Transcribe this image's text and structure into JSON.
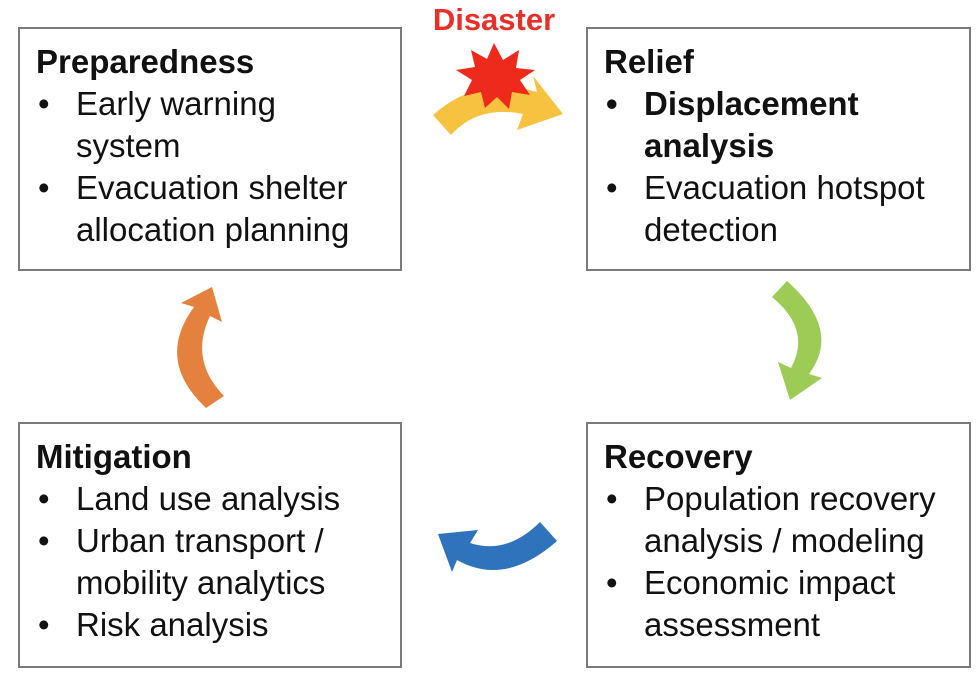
{
  "disaster_label": "Disaster",
  "phases": {
    "preparedness": {
      "title": "Preparedness",
      "items": [
        {
          "text": "Early warning system",
          "bold": false
        },
        {
          "text": "Evacuation shelter allocation planning",
          "bold": false
        }
      ]
    },
    "relief": {
      "title": "Relief",
      "items": [
        {
          "text": "Displacement analysis",
          "bold": true
        },
        {
          "text": "Evacuation hotspot detection",
          "bold": false
        }
      ]
    },
    "recovery": {
      "title": "Recovery",
      "items": [
        {
          "text": "Population recovery analysis / modeling",
          "bold": false
        },
        {
          "text": "Economic impact assessment",
          "bold": false
        }
      ]
    },
    "mitigation": {
      "title": "Mitigation",
      "items": [
        {
          "text": "Land use analysis",
          "bold": false
        },
        {
          "text": "Urban transport / mobility analytics",
          "bold": false
        },
        {
          "text": "Risk analysis",
          "bold": false
        }
      ]
    }
  },
  "bullet_char": "•",
  "colors": {
    "disaster_text": "#e8302a",
    "starburst": "#ee2a1c",
    "arrow_disaster": "#f6c23f",
    "arrow_relief_to_recovery": "#9ccc55",
    "arrow_recovery_to_mitigation": "#2f73bd",
    "arrow_mitigation_to_preparedness": "#e5813e",
    "box_border": "#7a7a7a"
  },
  "icons": [
    "starburst-icon",
    "curved-arrow-icon"
  ]
}
